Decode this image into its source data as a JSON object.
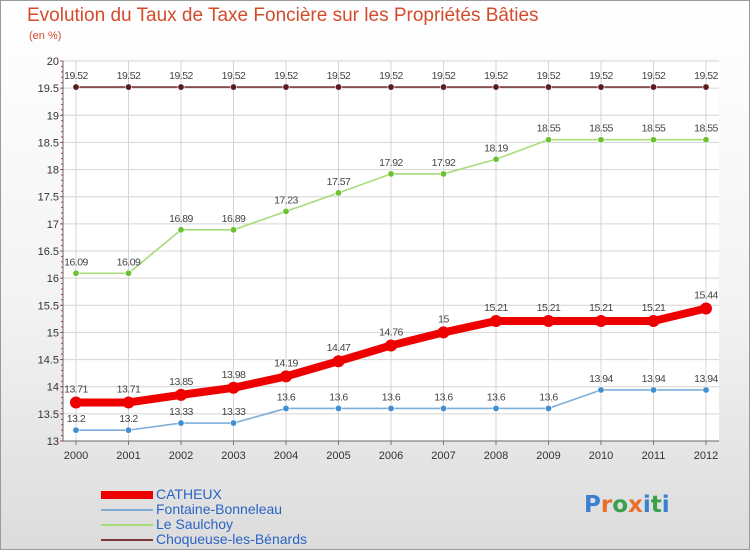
{
  "header": {
    "title": "Evolution du Taux de Taxe Foncière sur les Propriétés Bâties",
    "unit": "(en %)"
  },
  "logo": {
    "text": "Proxiti",
    "letter_colors": [
      "#3a7fd0",
      "#e8702a",
      "#3aa04a",
      "#e8702a",
      "#3a7fd0",
      "#3aa04a",
      "#3a7fd0"
    ]
  },
  "chart_data": {
    "type": "line",
    "title": "Evolution du Taux de Taxe Foncière sur les Propriétés Bâties",
    "ylabel": "(en %)",
    "xlabel": "",
    "x": [
      "2000",
      "2001",
      "2002",
      "2003",
      "2004",
      "2005",
      "2006",
      "2007",
      "2008",
      "2009",
      "2010",
      "2011",
      "2012"
    ],
    "ylim": [
      13,
      20
    ],
    "ytick_step": 0.5,
    "yticks": [
      "13",
      "13.5",
      "14",
      "14.5",
      "15",
      "15.5",
      "16",
      "16.5",
      "17",
      "17.5",
      "18",
      "18.5",
      "19",
      "19.5",
      "20"
    ],
    "grid": true,
    "legend_position": "bottom-left",
    "series": [
      {
        "name": "CATHEUX",
        "color": "#ee0000",
        "point_color": "#ee0000",
        "emphasis": true,
        "values": [
          13.71,
          13.71,
          13.85,
          13.98,
          14.19,
          14.47,
          14.76,
          15,
          15.21,
          15.21,
          15.21,
          15.21,
          15.44
        ],
        "labels": [
          "13.71",
          "13.71",
          "13.85",
          "13.98",
          "14.19",
          "14.47",
          "14.76",
          "15",
          "15.21",
          "15.21",
          "15.21",
          "15.21",
          "15.44"
        ]
      },
      {
        "name": "Fontaine-Bonneleau",
        "color": "#7faed8",
        "point_color": "#3f8fd2",
        "emphasis": false,
        "values": [
          13.2,
          13.2,
          13.33,
          13.33,
          13.6,
          13.6,
          13.6,
          13.6,
          13.6,
          13.6,
          13.94,
          13.94,
          13.94
        ],
        "labels": [
          "13.2",
          "13.2",
          "13.33",
          "13.33",
          "13.6",
          "13.6",
          "13.6",
          "13.6",
          "13.6",
          "13.6",
          "13.94",
          "13.94",
          "13.94"
        ]
      },
      {
        "name": "Le Saulchoy",
        "color": "#a8dc78",
        "point_color": "#6cc133",
        "emphasis": false,
        "values": [
          16.09,
          16.09,
          16.89,
          16.89,
          17.23,
          17.57,
          17.92,
          17.92,
          18.19,
          18.55,
          18.55,
          18.55,
          18.55
        ],
        "labels": [
          "16.09",
          "16.09",
          "16.89",
          "16.89",
          "17.23",
          "17.57",
          "17.92",
          "17.92",
          "18.19",
          "18.55",
          "18.55",
          "18.55",
          "18.55"
        ]
      },
      {
        "name": "Choqueuse-les-Bénards",
        "color": "#7a3a3a",
        "point_color": "#5a1c1c",
        "emphasis": false,
        "values": [
          19.52,
          19.52,
          19.52,
          19.52,
          19.52,
          19.52,
          19.52,
          19.52,
          19.52,
          19.52,
          19.52,
          19.52,
          19.52
        ],
        "labels": [
          "19.52",
          "19.52",
          "19.52",
          "19.52",
          "19.52",
          "19.52",
          "19.52",
          "19.52",
          "19.52",
          "19.52",
          "19.52",
          "19.52",
          "19.52"
        ]
      }
    ]
  }
}
